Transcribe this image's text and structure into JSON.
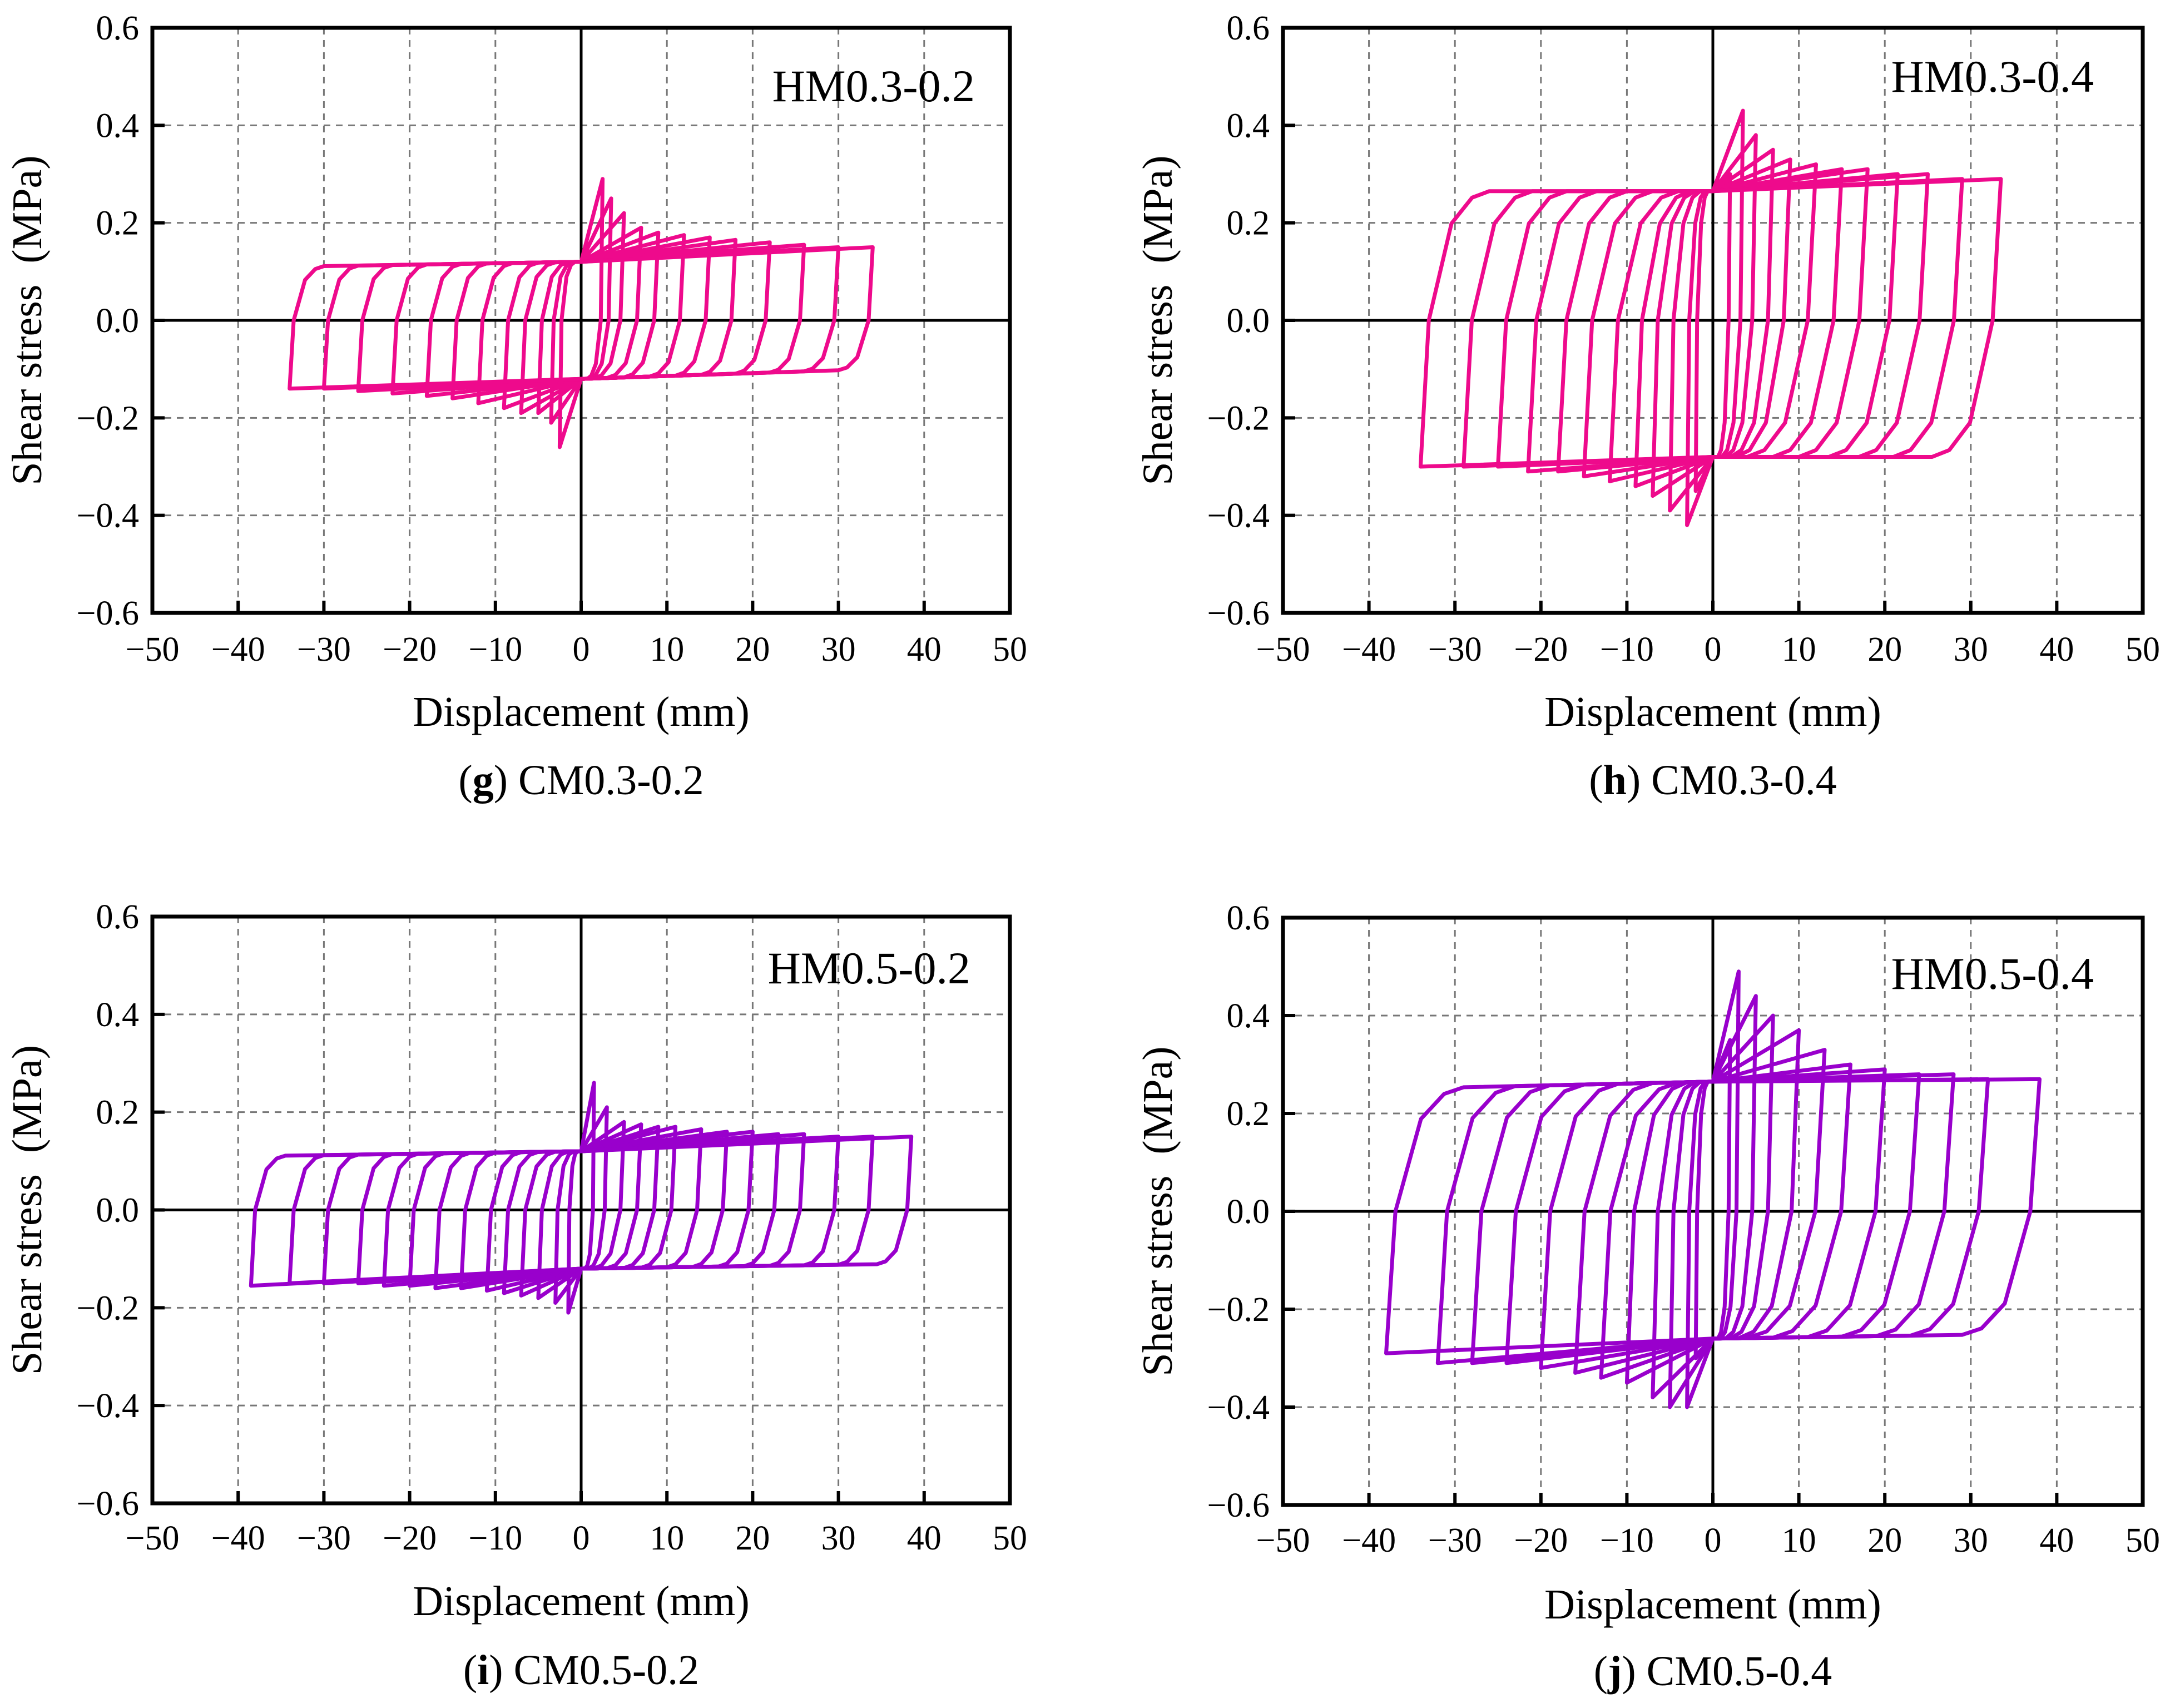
{
  "chart_data": [
    {
      "type": "line",
      "title": "HM0.3-0.2",
      "caption_letter": "g",
      "caption": "CM0.3-0.2",
      "xlabel": "Displacement (mm)",
      "ylabel": "Shear stress  (MPa)",
      "xlim": [
        -50,
        50
      ],
      "ylim": [
        -0.6,
        0.6
      ],
      "xticks": [
        "−50",
        "−40",
        "−30",
        "−20",
        "−10",
        "0",
        "10",
        "20",
        "30",
        "40",
        "50"
      ],
      "yticks": [
        "0.6",
        "0.4",
        "0.2",
        "0.0",
        "−0.2",
        "−0.4",
        "−0.6"
      ],
      "grid": true,
      "color": "#EE0A8C",
      "series": {
        "name": "hysteresis",
        "amp_pos": [
          2.5,
          3.5,
          5,
          7,
          9,
          12,
          15,
          18,
          22,
          26,
          30,
          34
        ],
        "peak_pos": [
          0.29,
          0.25,
          0.22,
          0.19,
          0.18,
          0.175,
          0.17,
          0.165,
          0.16,
          0.155,
          0.15,
          0.15
        ],
        "amp_neg": [
          2.5,
          3.5,
          5,
          7,
          9,
          12,
          15,
          18,
          22,
          26,
          30,
          34
        ],
        "peak_neg": [
          -0.26,
          -0.21,
          -0.19,
          -0.19,
          -0.18,
          -0.17,
          -0.16,
          -0.155,
          -0.15,
          -0.145,
          -0.14,
          -0.14
        ],
        "upper_plateau": [
          0.11,
          0.12,
          0.15
        ],
        "lower_plateau": [
          -0.14,
          -0.12,
          -0.1
        ],
        "transition_width": 4
      }
    },
    {
      "type": "line",
      "title": "HM0.3-0.4",
      "caption_letter": "h",
      "caption": "CM0.3-0.4",
      "xlabel": "Displacement (mm)",
      "ylabel": "Shear stress  (MPa)",
      "xlim": [
        -50,
        50
      ],
      "ylim": [
        -0.6,
        0.6
      ],
      "xticks": [
        "−50",
        "−40",
        "−30",
        "−20",
        "−10",
        "0",
        "10",
        "20",
        "30",
        "40",
        "50"
      ],
      "yticks": [
        "0.6",
        "0.4",
        "0.2",
        "0.0",
        "−0.2",
        "−0.4",
        "−0.6"
      ],
      "grid": true,
      "color": "#EE0A8C",
      "series": {
        "name": "hysteresis",
        "amp_pos": [
          2,
          3.5,
          5,
          7,
          9,
          12,
          15,
          18,
          21.5,
          25,
          29,
          33.5
        ],
        "peak_pos": [
          0.3,
          0.43,
          0.38,
          0.35,
          0.33,
          0.32,
          0.31,
          0.31,
          0.3,
          0.3,
          0.29,
          0.29
        ],
        "amp_neg": [
          2,
          3,
          5,
          7,
          9,
          12,
          15,
          18,
          21.5,
          25,
          29,
          34
        ],
        "peak_neg": [
          -0.35,
          -0.42,
          -0.39,
          -0.36,
          -0.34,
          -0.33,
          -0.32,
          -0.31,
          -0.31,
          -0.3,
          -0.3,
          -0.3
        ],
        "upper_plateau": [
          0.265,
          0.265,
          0.29
        ],
        "lower_plateau": [
          -0.3,
          -0.28,
          -0.28
        ],
        "transition_width": 8
      }
    },
    {
      "type": "line",
      "title": "HM0.5-0.2",
      "caption_letter": "i",
      "caption": "CM0.5-0.2",
      "xlabel": "Displacement (mm)",
      "ylabel": "Shear stress  (MPa)",
      "xlim": [
        -50,
        50
      ],
      "ylim": [
        -0.6,
        0.6
      ],
      "xticks": [
        "−50",
        "−40",
        "−30",
        "−20",
        "−10",
        "0",
        "10",
        "20",
        "30",
        "40",
        "50"
      ],
      "yticks": [
        "0.6",
        "0.4",
        "0.2",
        "0.0",
        "−0.2",
        "−0.4",
        "−0.6"
      ],
      "grid": true,
      "color": "#9900CC",
      "series": {
        "name": "hysteresis",
        "amp_pos": [
          1.5,
          3,
          5,
          7,
          9,
          11,
          14,
          17,
          20,
          23,
          26,
          30,
          34,
          38.5
        ],
        "peak_pos": [
          0.26,
          0.21,
          0.18,
          0.175,
          0.17,
          0.17,
          0.165,
          0.16,
          0.16,
          0.155,
          0.155,
          0.15,
          0.15,
          0.15
        ],
        "amp_neg": [
          1.5,
          3,
          5,
          7,
          9,
          11,
          14,
          17,
          20,
          23,
          26,
          30,
          34,
          38.5
        ],
        "peak_neg": [
          -0.21,
          -0.19,
          -0.18,
          -0.175,
          -0.17,
          -0.165,
          -0.16,
          -0.16,
          -0.155,
          -0.155,
          -0.15,
          -0.15,
          -0.15,
          -0.155
        ],
        "upper_plateau": [
          0.11,
          0.12,
          0.15
        ],
        "lower_plateau": [
          -0.155,
          -0.12,
          -0.11
        ],
        "transition_width": 4
      }
    },
    {
      "type": "line",
      "title": "HM0.5-0.4",
      "caption_letter": "j",
      "caption": "CM0.5-0.4",
      "xlabel": "Displacement (mm)",
      "ylabel": "Shear stress  (MPa)",
      "xlim": [
        -50,
        50
      ],
      "ylim": [
        -0.6,
        0.6
      ],
      "xticks": [
        "−50",
        "−40",
        "−30",
        "−20",
        "−10",
        "0",
        "10",
        "20",
        "30",
        "40",
        "50"
      ],
      "yticks": [
        "0.6",
        "0.4",
        "0.2",
        "0.0",
        "−0.2",
        "−0.4",
        "−0.6"
      ],
      "grid": true,
      "color": "#9900CC",
      "series": {
        "name": "hysteresis",
        "amp_pos": [
          2,
          3,
          5,
          7,
          10,
          13,
          16,
          20,
          24,
          28,
          32,
          38
        ],
        "peak_pos": [
          0.35,
          0.49,
          0.44,
          0.4,
          0.37,
          0.33,
          0.3,
          0.29,
          0.28,
          0.28,
          0.27,
          0.27
        ],
        "amp_neg": [
          2,
          3,
          5,
          7,
          10,
          13,
          16,
          20,
          24,
          28,
          32,
          38
        ],
        "peak_neg": [
          -0.3,
          -0.4,
          -0.4,
          -0.38,
          -0.35,
          -0.34,
          -0.33,
          -0.32,
          -0.31,
          -0.31,
          -0.31,
          -0.29
        ],
        "upper_plateau": [
          0.25,
          0.265,
          0.27
        ],
        "lower_plateau": [
          -0.3,
          -0.26,
          -0.25
        ],
        "transition_width": 9
      }
    }
  ]
}
